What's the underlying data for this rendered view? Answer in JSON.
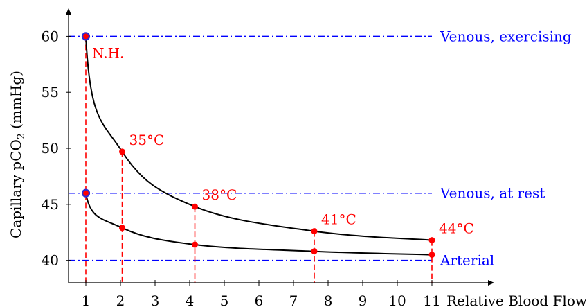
{
  "chart_data": {
    "type": "line",
    "xlabel": "Relative Blood Flow",
    "ylabel_main": "Capillary pCO",
    "ylabel_sub": "2",
    "ylabel_unit": " (mmHg)",
    "xlim": [
      0.5,
      12.8
    ],
    "ylim": [
      38,
      62.5
    ],
    "xticks": [
      1,
      2,
      3,
      4,
      5,
      6,
      7,
      8,
      9,
      10,
      11
    ],
    "yticks": [
      40,
      45,
      50,
      55,
      60
    ],
    "colors": {
      "curve": "#000000",
      "reference": "#0000ff",
      "points": "#ff0000",
      "base": "#2b2bd6"
    },
    "reference_lines": [
      {
        "label": "Venous, exercising",
        "y": 60
      },
      {
        "label": "Venous, at rest",
        "y": 46
      },
      {
        "label": "Arterial",
        "y": 40
      }
    ],
    "series": [
      {
        "x": [
          1,
          2.05,
          4.15,
          7.6,
          11
        ],
        "y": [
          60,
          49.7,
          44.8,
          42.6,
          41.8
        ]
      },
      {
        "x": [
          1,
          2.05,
          4.15,
          7.6,
          11
        ],
        "y": [
          46,
          42.9,
          41.4,
          40.8,
          40.5
        ]
      }
    ],
    "point_labels": [
      {
        "text": "N.H.",
        "x": 1,
        "y": 60
      },
      {
        "text": "35°C",
        "x": 2.05,
        "y": 49.7
      },
      {
        "text": "38°C",
        "x": 4.15,
        "y": 44.8
      },
      {
        "text": "41°C",
        "x": 7.6,
        "y": 42.6
      },
      {
        "text": "44°C",
        "x": 11,
        "y": 41.8
      }
    ]
  }
}
